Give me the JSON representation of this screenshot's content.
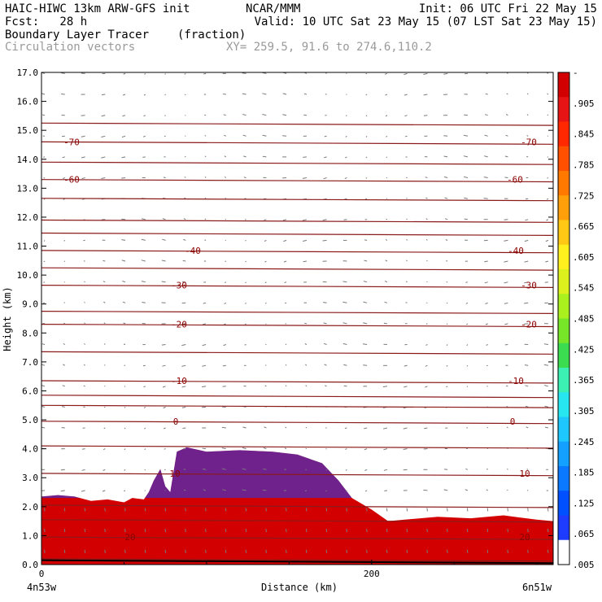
{
  "header": {
    "model": "HAIC-HIWC 13km ARW-GFS init",
    "org": "NCAR/MMM",
    "init": "Init: 06 UTC Fri 22 May 15",
    "fcst": "Fcst:   28 h",
    "valid": "Valid: 10 UTC Sat 23 May 15 (07 LST Sat 23 May 15)",
    "field": "Boundary Layer Tracer",
    "units": "(fraction)",
    "vectors": "Circulation vectors",
    "xy": "XY= 259.5, 91.6 to 274.6,110.2"
  },
  "chart_data": {
    "type": "heatmap",
    "ylabel": "Height (km)",
    "xlabel": "Distance (km)",
    "ylim": [
      0,
      17
    ],
    "yticks": [
      "0.0",
      "1.0",
      "2.0",
      "3.0",
      "4.0",
      "5.0",
      "6.0",
      "7.0",
      "8.0",
      "9.0",
      "10.0",
      "11.0",
      "12.0",
      "13.0",
      "14.0",
      "15.0",
      "16.0",
      "17.0"
    ],
    "xlim": [
      0,
      310
    ],
    "xticks": [
      {
        "value": 0,
        "label": "0"
      },
      {
        "value": 200,
        "label": "200"
      }
    ],
    "x_endpoints": {
      "left": "4n53w",
      "right": "6n51w"
    },
    "colorbar": {
      "labels": [
        "-",
        ".905",
        ".845",
        ".785",
        ".725",
        ".665",
        ".605",
        ".545",
        ".485",
        ".425",
        ".365",
        ".305",
        ".245",
        ".185",
        ".125",
        ".065",
        ".005"
      ],
      "colors": [
        "#ffffff",
        "#1e3cff",
        "#0050ff",
        "#0a78ff",
        "#14a0ff",
        "#1ec8ff",
        "#28e6f0",
        "#3cf0b4",
        "#3cdc50",
        "#78e628",
        "#aaf01e",
        "#dcf01e",
        "#fff01e",
        "#ffc814",
        "#ffa00a",
        "#ff7800",
        "#ff5000",
        "#ff2800",
        "#e61414",
        "#d20000"
      ]
    },
    "temperature_contours_C": [
      {
        "value": 20,
        "label": "20",
        "height_km": 0.95
      },
      {
        "value": 10,
        "label": "10",
        "height_km": 3.15
      },
      {
        "value": 0,
        "label": "0",
        "height_km": 4.95
      },
      {
        "value": -10,
        "label": "-10",
        "height_km": 6.35
      },
      {
        "value": -20,
        "label": "-20",
        "height_km": 8.3
      },
      {
        "value": -30,
        "label": "-30",
        "height_km": 9.65
      },
      {
        "value": -40,
        "label": "-40",
        "height_km": 10.85
      },
      {
        "value": -60,
        "label": "-60",
        "height_km": 13.3
      },
      {
        "value": -70,
        "label": "-70",
        "height_km": 14.6
      }
    ],
    "unlabeled_contour_heights_km": [
      0.2,
      1.55,
      2.05,
      4.1,
      5.5,
      5.85,
      7.35,
      8.75,
      10.25,
      11.45,
      11.9,
      12.65,
      13.9,
      15.25
    ],
    "tracer_top_km": [
      [
        0,
        2.35
      ],
      [
        10,
        2.4
      ],
      [
        20,
        2.35
      ],
      [
        30,
        2.2
      ],
      [
        40,
        2.25
      ],
      [
        50,
        2.15
      ],
      [
        55,
        2.3
      ],
      [
        62,
        2.25
      ],
      [
        65,
        2.5
      ],
      [
        68,
        2.9
      ],
      [
        72,
        3.3
      ],
      [
        75,
        2.7
      ],
      [
        78,
        2.5
      ],
      [
        82,
        3.9
      ],
      [
        88,
        4.05
      ],
      [
        100,
        3.9
      ],
      [
        120,
        3.95
      ],
      [
        140,
        3.9
      ],
      [
        155,
        3.8
      ],
      [
        170,
        3.5
      ],
      [
        180,
        2.9
      ],
      [
        188,
        2.3
      ],
      [
        200,
        1.9
      ],
      [
        210,
        1.5
      ],
      [
        220,
        1.55
      ],
      [
        240,
        1.65
      ],
      [
        260,
        1.6
      ],
      [
        280,
        1.7
      ],
      [
        300,
        1.55
      ],
      [
        310,
        1.5
      ]
    ]
  }
}
